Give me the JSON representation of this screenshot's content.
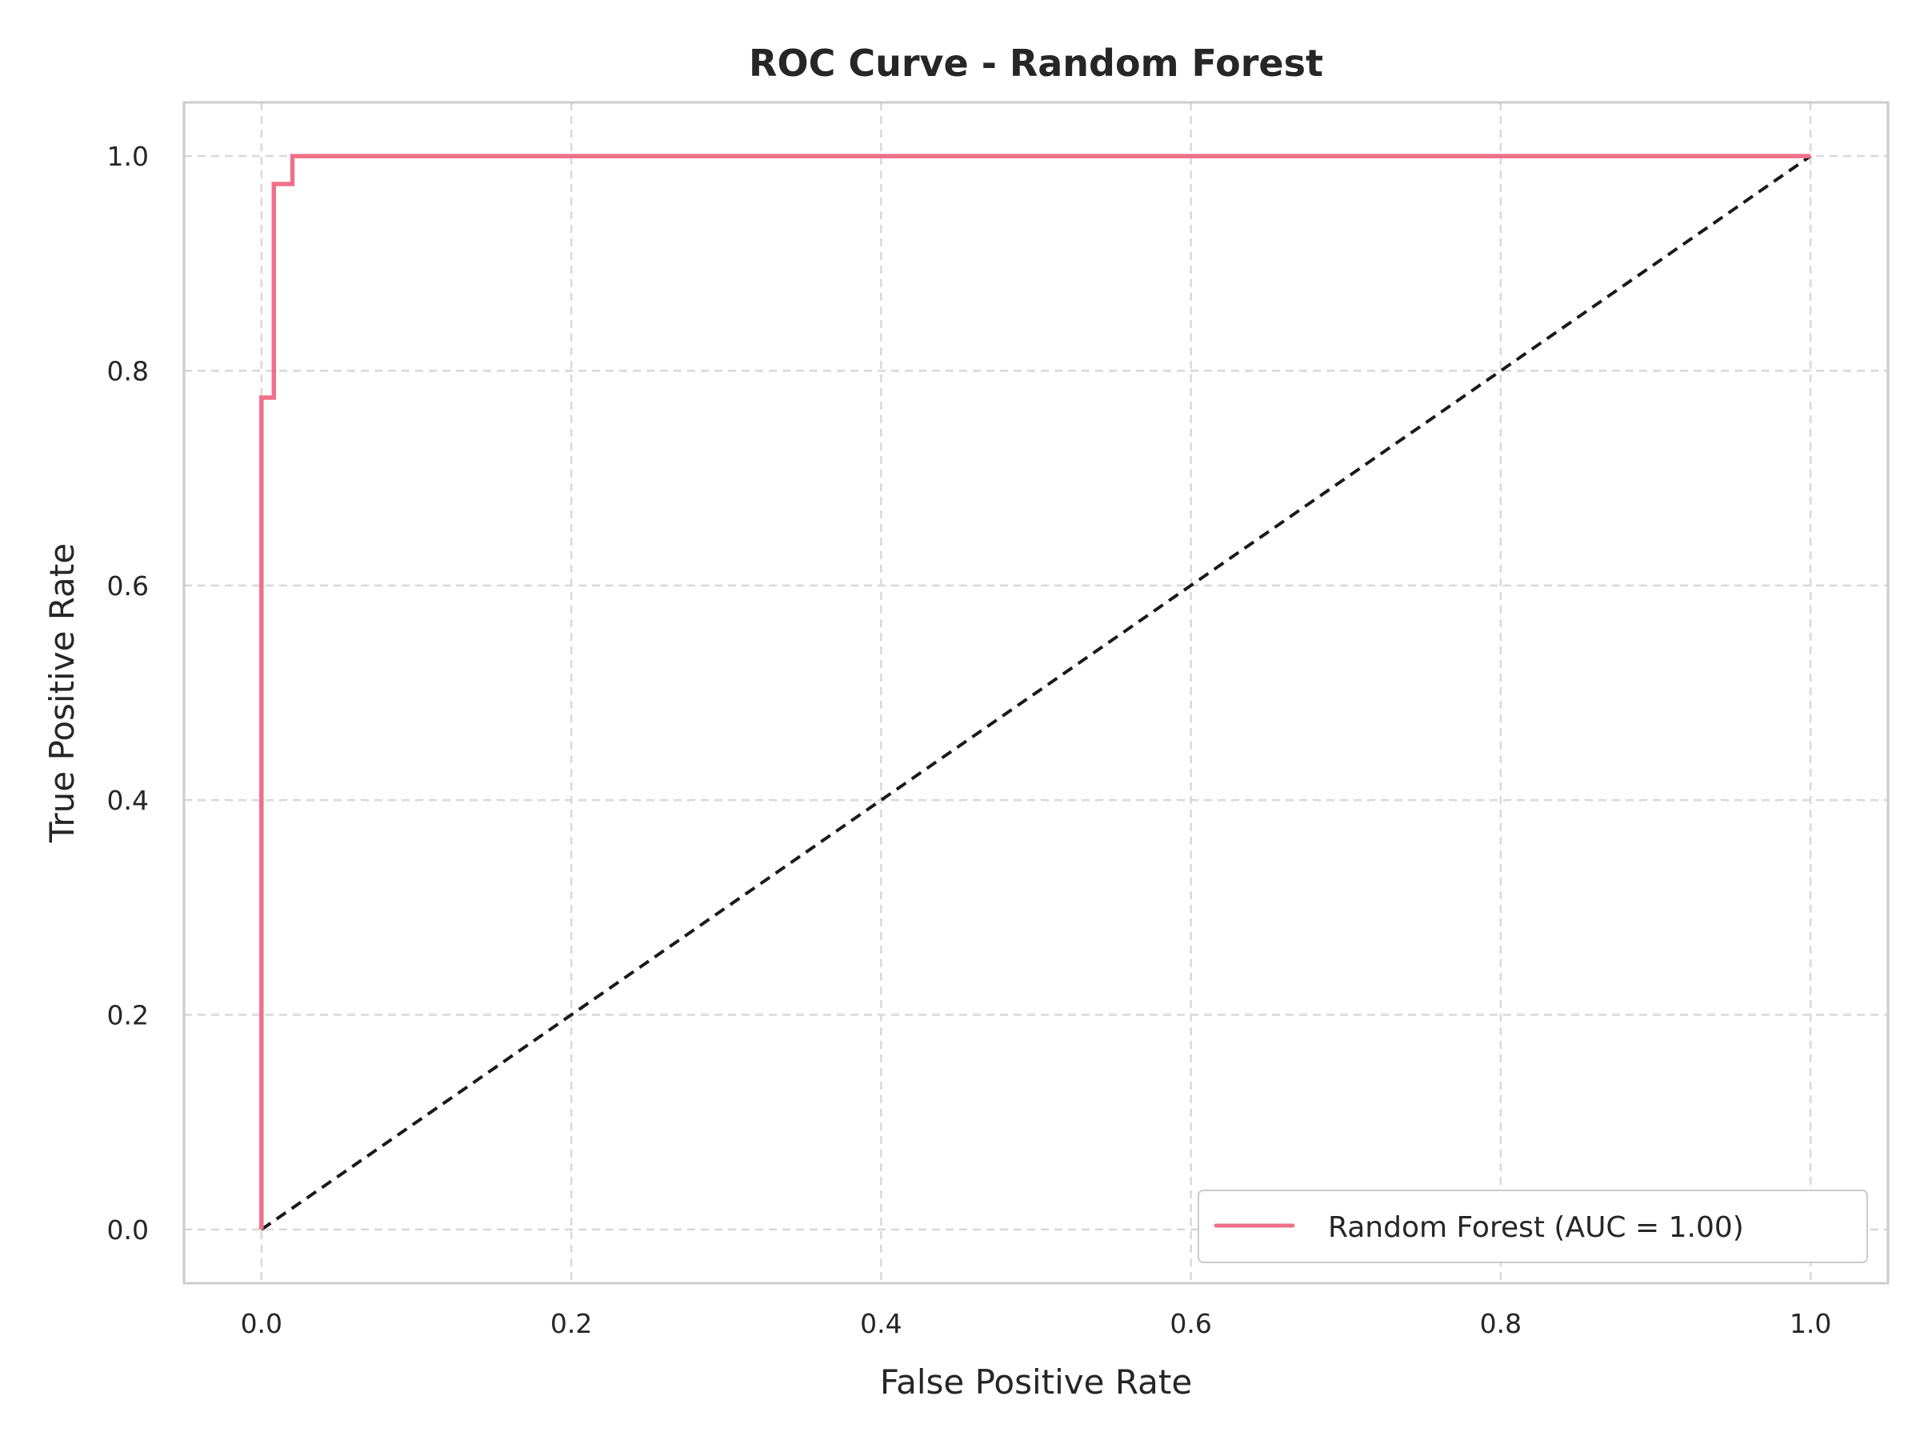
{
  "chart_data": {
    "type": "line",
    "title": "ROC Curve - Random Forest",
    "xlabel": "False Positive Rate",
    "ylabel": "True Positive Rate",
    "xlim": [
      -0.05,
      1.05
    ],
    "ylim": [
      -0.05,
      1.05
    ],
    "xticks": [
      "0.0",
      "0.2",
      "0.4",
      "0.6",
      "0.8",
      "1.0"
    ],
    "yticks": [
      "0.0",
      "0.2",
      "0.4",
      "0.6",
      "0.8",
      "1.0"
    ],
    "grid": true,
    "legend_position": "lower-right",
    "series": [
      {
        "name": "Random Forest (AUC = 1.00)",
        "color": "#f07089",
        "style": "solid",
        "x": [
          0.0,
          0.0,
          0.008,
          0.008,
          0.02,
          0.02,
          1.0
        ],
        "y": [
          0.0,
          0.775,
          0.775,
          0.974,
          0.974,
          1.0,
          1.0
        ]
      },
      {
        "color": "#1a1a1a",
        "style": "dashed",
        "x": [
          0.0,
          1.0
        ],
        "y": [
          0.0,
          1.0
        ]
      }
    ]
  }
}
